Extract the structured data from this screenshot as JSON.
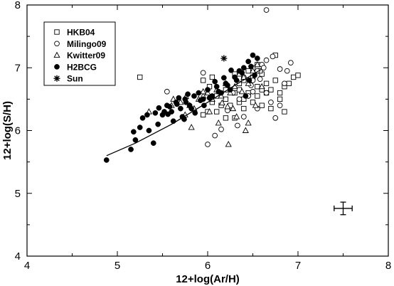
{
  "chart_data": {
    "type": "scatter",
    "xlabel": "12+log(Ar/H)",
    "ylabel": "12+log(S/H)",
    "xlim": [
      4,
      8
    ],
    "ylim": [
      4,
      8
    ],
    "xticks": [
      "4",
      "5",
      "6",
      "7",
      "8"
    ],
    "yticks": [
      "4",
      "5",
      "6",
      "7",
      "8"
    ],
    "legend_position": "top-left",
    "series": [
      {
        "name": "HKB04",
        "marker": "open-square",
        "points": [
          [
            5.25,
            6.85
          ],
          [
            5.95,
            6.8
          ],
          [
            6.05,
            6.85
          ],
          [
            6.02,
            6.7
          ],
          [
            6.1,
            6.55
          ],
          [
            6.2,
            6.65
          ],
          [
            6.3,
            6.6
          ],
          [
            6.35,
            6.75
          ],
          [
            6.4,
            6.5
          ],
          [
            6.45,
            6.95
          ],
          [
            6.5,
            7.0
          ],
          [
            6.55,
            7.05
          ],
          [
            6.6,
            6.9
          ],
          [
            6.65,
            6.75
          ],
          [
            6.7,
            6.65
          ],
          [
            6.75,
            6.8
          ],
          [
            6.8,
            6.6
          ],
          [
            6.85,
            6.7
          ],
          [
            6.9,
            6.75
          ],
          [
            6.95,
            6.85
          ],
          [
            7.0,
            6.88
          ],
          [
            6.1,
            6.3
          ],
          [
            6.2,
            6.2
          ],
          [
            6.25,
            6.4
          ],
          [
            6.3,
            6.2
          ],
          [
            6.35,
            6.45
          ],
          [
            6.4,
            6.35
          ],
          [
            6.5,
            6.45
          ],
          [
            6.55,
            6.55
          ],
          [
            6.6,
            6.4
          ],
          [
            6.7,
            6.35
          ],
          [
            6.75,
            7.2
          ],
          [
            6.8,
            6.5
          ],
          [
            6.85,
            6.3
          ],
          [
            6.45,
            6.6
          ],
          [
            6.5,
            6.85
          ],
          [
            6.55,
            6.7
          ],
          [
            6.6,
            6.65
          ],
          [
            6.65,
            6.6
          ],
          [
            6.4,
            6.8
          ],
          [
            6.3,
            6.9
          ],
          [
            6.15,
            6.4
          ],
          [
            6.2,
            6.5
          ],
          [
            6.05,
            6.45
          ],
          [
            6.0,
            6.3
          ],
          [
            5.95,
            6.25
          ],
          [
            6.35,
            6.65
          ],
          [
            6.58,
            6.95
          ]
        ]
      },
      {
        "name": "Milingo09",
        "marker": "open-circle",
        "points": [
          [
            5.55,
            6.62
          ],
          [
            5.95,
            6.92
          ],
          [
            6.0,
            5.78
          ],
          [
            6.08,
            5.92
          ],
          [
            6.15,
            6.02
          ],
          [
            6.22,
            6.32
          ],
          [
            6.28,
            6.6
          ],
          [
            6.33,
            6.08
          ],
          [
            6.4,
            6.22
          ],
          [
            6.45,
            6.55
          ],
          [
            6.5,
            6.8
          ],
          [
            6.55,
            6.95
          ],
          [
            6.6,
            7.05
          ],
          [
            6.65,
            7.12
          ],
          [
            6.72,
            7.18
          ],
          [
            6.8,
            6.98
          ],
          [
            6.88,
            6.95
          ],
          [
            6.92,
            7.08
          ],
          [
            6.65,
            6.6
          ],
          [
            6.7,
            6.45
          ],
          [
            6.75,
            6.2
          ],
          [
            6.8,
            6.4
          ],
          [
            6.85,
            6.75
          ],
          [
            6.55,
            6.35
          ],
          [
            6.5,
            6.62
          ],
          [
            6.4,
            6.85
          ],
          [
            6.35,
            6.5
          ],
          [
            6.62,
            7.0
          ],
          [
            6.48,
            6.72
          ],
          [
            6.58,
            6.82
          ],
          [
            6.65,
            7.92
          ]
        ]
      },
      {
        "name": "Kwitter09",
        "marker": "open-triangle",
        "points": [
          [
            5.35,
            6.3
          ],
          [
            5.6,
            6.4
          ],
          [
            5.7,
            6.45
          ],
          [
            5.75,
            6.25
          ],
          [
            5.8,
            6.4
          ],
          [
            5.85,
            6.35
          ],
          [
            5.9,
            6.5
          ],
          [
            5.95,
            6.55
          ],
          [
            6.0,
            6.6
          ],
          [
            6.05,
            6.5
          ],
          [
            6.1,
            6.65
          ],
          [
            6.15,
            6.55
          ],
          [
            6.2,
            6.75
          ],
          [
            6.25,
            6.6
          ],
          [
            6.3,
            6.7
          ],
          [
            6.35,
            6.9
          ],
          [
            6.4,
            6.85
          ],
          [
            6.45,
            6.75
          ],
          [
            6.5,
            6.95
          ],
          [
            6.55,
            7.05
          ],
          [
            6.6,
            6.7
          ],
          [
            5.82,
            6.05
          ],
          [
            6.02,
            6.3
          ],
          [
            6.12,
            6.12
          ],
          [
            6.22,
            6.38
          ],
          [
            6.32,
            6.22
          ],
          [
            6.42,
            6.0
          ],
          [
            6.45,
            6.12
          ],
          [
            6.53,
            6.4
          ],
          [
            6.23,
            5.78
          ],
          [
            5.62,
            6.5
          ],
          [
            5.95,
            6.62
          ],
          [
            6.38,
            6.62
          ],
          [
            5.76,
            6.54
          ],
          [
            6.16,
            6.44
          ],
          [
            6.28,
            6.35
          ]
        ]
      },
      {
        "name": "H2BCG",
        "marker": "filled-circle",
        "points": [
          [
            4.88,
            5.53
          ],
          [
            5.15,
            5.7
          ],
          [
            5.2,
            5.85
          ],
          [
            5.25,
            6.05
          ],
          [
            5.28,
            6.2
          ],
          [
            5.35,
            6.0
          ],
          [
            5.4,
            5.8
          ],
          [
            5.45,
            6.1
          ],
          [
            5.5,
            6.25
          ],
          [
            5.55,
            6.4
          ],
          [
            5.6,
            6.3
          ],
          [
            5.65,
            6.45
          ],
          [
            5.7,
            6.35
          ],
          [
            5.75,
            6.5
          ],
          [
            5.8,
            6.4
          ],
          [
            5.85,
            6.55
          ],
          [
            5.9,
            6.6
          ],
          [
            5.95,
            6.5
          ],
          [
            6.0,
            6.65
          ],
          [
            6.05,
            6.55
          ],
          [
            6.1,
            6.7
          ],
          [
            6.15,
            6.6
          ],
          [
            6.2,
            6.75
          ],
          [
            6.25,
            6.65
          ],
          [
            6.3,
            6.85
          ],
          [
            6.35,
            6.95
          ],
          [
            6.4,
            7.0
          ],
          [
            6.45,
            7.1
          ],
          [
            6.5,
            7.2
          ],
          [
            6.55,
            7.15
          ],
          [
            6.42,
            6.55
          ],
          [
            5.72,
            6.22
          ],
          [
            5.62,
            6.15
          ],
          [
            5.82,
            6.35
          ],
          [
            5.52,
            6.3
          ],
          [
            5.33,
            6.25
          ],
          [
            5.42,
            6.28
          ],
          [
            5.58,
            6.38
          ],
          [
            5.66,
            6.42
          ],
          [
            5.92,
            6.48
          ],
          [
            6.02,
            6.52
          ],
          [
            6.12,
            6.62
          ],
          [
            6.22,
            6.72
          ],
          [
            6.32,
            6.8
          ],
          [
            6.38,
            6.92
          ],
          [
            6.48,
            7.02
          ],
          [
            6.26,
            6.96
          ],
          [
            5.76,
            6.45
          ],
          [
            5.86,
            6.28
          ],
          [
            5.96,
            6.4
          ],
          [
            5.68,
            6.52
          ],
          [
            5.78,
            6.58
          ],
          [
            6.08,
            6.78
          ],
          [
            6.18,
            6.84
          ],
          [
            6.52,
            6.88
          ],
          [
            6.46,
            6.8
          ],
          [
            5.56,
            6.26
          ],
          [
            5.46,
            6.36
          ],
          [
            5.74,
            6.18
          ],
          [
            5.18,
            5.98
          ]
        ]
      },
      {
        "name": "Sun",
        "marker": "asterisk",
        "points": [
          [
            6.18,
            7.15
          ]
        ]
      }
    ],
    "fit_line": [
      [
        4.88,
        5.6
      ],
      [
        5.2,
        5.8
      ],
      [
        5.6,
        6.1
      ],
      [
        6.0,
        6.45
      ],
      [
        6.3,
        6.72
      ],
      [
        6.6,
        6.98
      ]
    ],
    "error_bar": {
      "x": 7.5,
      "y": 4.76,
      "xerr": 0.1,
      "yerr": 0.1
    }
  }
}
